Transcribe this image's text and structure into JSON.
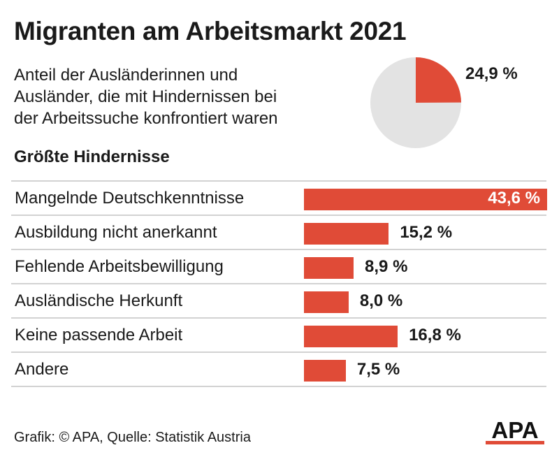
{
  "title": "Migranten am Arbeitsmarkt 2021",
  "subtitle_lines": [
    "Anteil der Ausländerinnen und",
    "Ausländer, die mit Hindernissen bei",
    "der Arbeitssuche konfrontiert waren"
  ],
  "section_title": "Größte Hindernisse",
  "source": "Grafik: © APA, Quelle: Statistik Austria",
  "logo_text": "APA",
  "colors": {
    "bar": "#e04b37",
    "pie_rest": "#e3e3e3",
    "divider": "#d2d2d2",
    "text": "#1a1a1a"
  },
  "chart_data": [
    {
      "type": "pie",
      "slices": [
        {
          "value": 24.9,
          "label": "24,9 %"
        },
        {
          "value": 75.1,
          "label": ""
        }
      ]
    },
    {
      "type": "bar",
      "orientation": "horizontal",
      "title": "Größte Hindernisse",
      "categories": [
        "Mangelnde Deutschkenntnisse",
        "Ausbildung nicht anerkannt",
        "Fehlende Arbeitsbewilligung",
        "Ausländische Herkunft",
        "Keine passende Arbeit",
        "Andere"
      ],
      "values": [
        43.6,
        15.2,
        8.9,
        8.0,
        16.8,
        7.5
      ],
      "value_labels": [
        "43,6 %",
        "15,2 %",
        "8,9 %",
        "8,0 %",
        "16,8 %",
        "7,5 %"
      ],
      "xlim": [
        0,
        43.6
      ]
    }
  ]
}
